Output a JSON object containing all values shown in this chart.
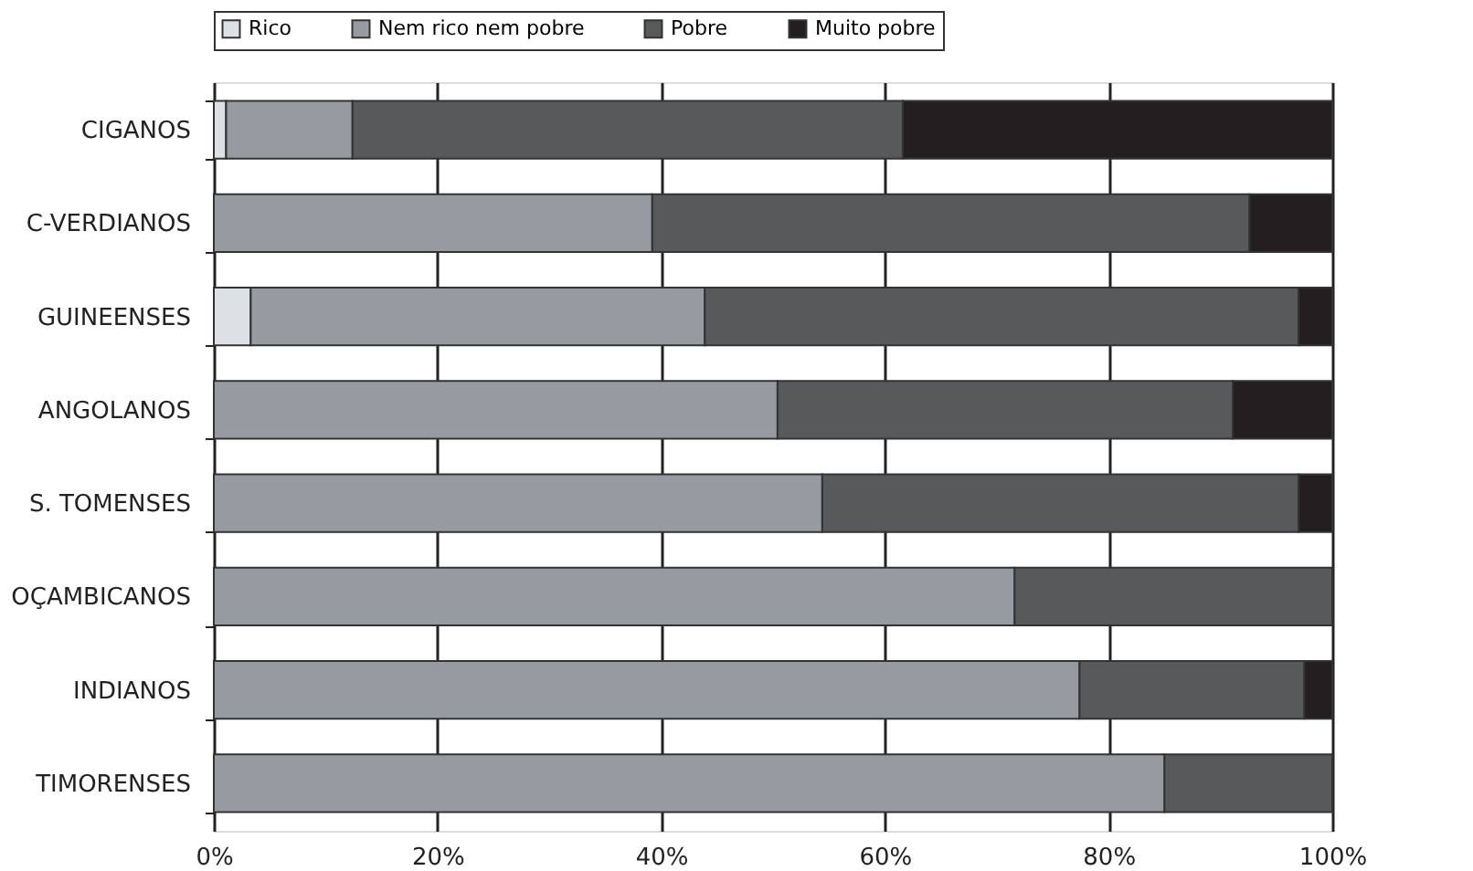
{
  "chart_data": {
    "type": "bar",
    "orientation": "horizontal",
    "stacked": true,
    "categories": [
      "CIGANOS",
      "C-VERDIANOS",
      "GUINEENSES",
      "ANGOLANOS",
      "S. TOMENSES",
      "OÇAMBICANOS",
      "INDIANOS",
      "TIMORENSES"
    ],
    "series": [
      {
        "name": "Rico",
        "color": "#dde0e4",
        "values": [
          1.1,
          null,
          3.3,
          null,
          null,
          null,
          null,
          null
        ]
      },
      {
        "name": "Nem rico nem pobre",
        "color": "#959ba1",
        "values": [
          11.3,
          39.2,
          40.6,
          50.4,
          54.4,
          71.6,
          77.4,
          85.0
        ]
      },
      {
        "name": "Pobre",
        "color": "#58595b",
        "values": [
          49.2,
          53.4,
          53.1,
          40.7,
          42.6,
          28.4,
          20.1,
          15.0
        ]
      },
      {
        "name": "Muito pobre",
        "color": "#231f20",
        "values": [
          38.4,
          7.4,
          3.0,
          8.9,
          3.0,
          null,
          2.5,
          null
        ]
      }
    ],
    "xlim": [
      0,
      100
    ],
    "xticks": [
      {
        "value": 0,
        "label": "0%"
      },
      {
        "value": 20,
        "label": "20%"
      },
      {
        "value": 40,
        "label": "40%"
      },
      {
        "value": 60,
        "label": "60%"
      },
      {
        "value": 80,
        "label": "80%"
      },
      {
        "value": 100,
        "label": "100%"
      }
    ],
    "grid": "x",
    "legend": "top"
  }
}
